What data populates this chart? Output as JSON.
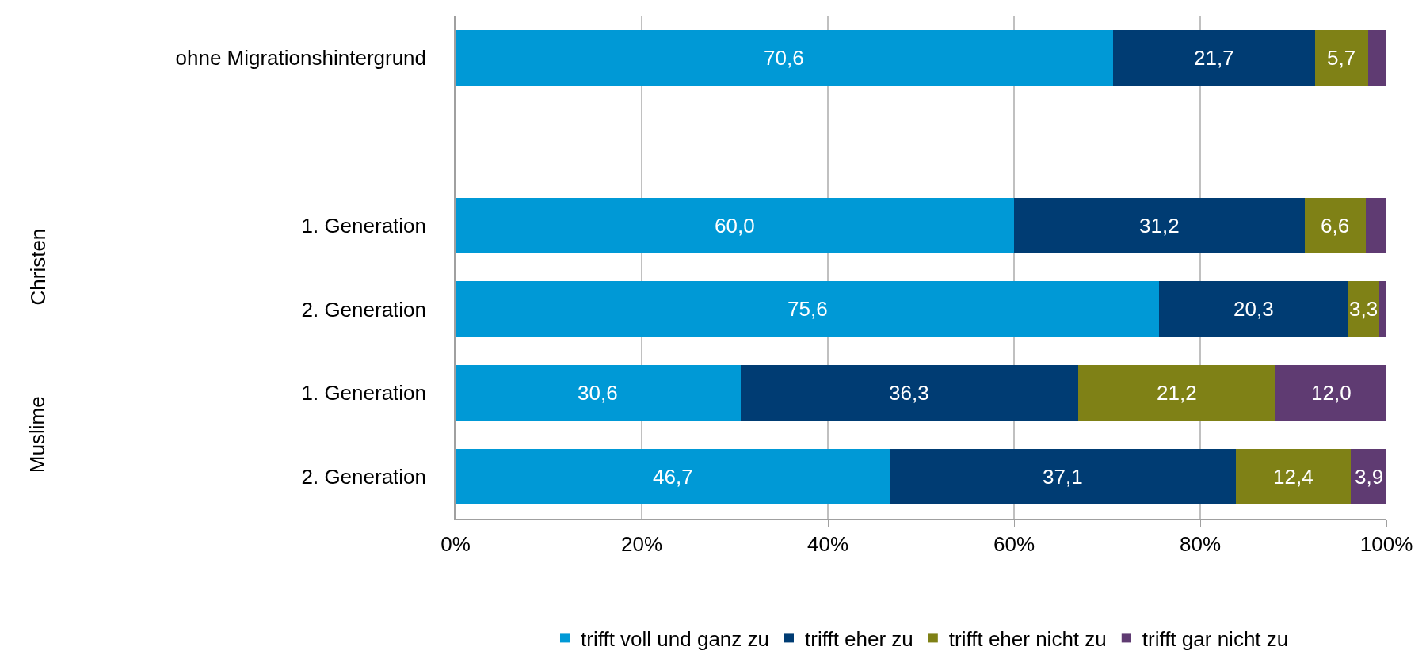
{
  "chart_data": {
    "type": "bar",
    "orientation": "horizontal",
    "stacked": true,
    "categories": [
      "ohne Migrationshintergrund",
      null,
      "1. Generation",
      "2. Generation",
      "1. Generation",
      "2. Generation"
    ],
    "series": [
      {
        "name": "trifft voll und ganz zu",
        "color": "#0099d6",
        "values": [
          70.6,
          null,
          60.0,
          75.6,
          30.6,
          46.7
        ],
        "value_labels": [
          "70,6",
          null,
          "60,0",
          "75,6",
          "30,6",
          "46,7"
        ]
      },
      {
        "name": "trifft eher zu",
        "color": "#003c73",
        "values": [
          21.7,
          null,
          31.2,
          20.3,
          36.3,
          37.1
        ],
        "value_labels": [
          "21,7",
          null,
          "31,2",
          "20,3",
          "36,3",
          "37,1"
        ]
      },
      {
        "name": "trifft eher nicht zu",
        "color": "#7f8116",
        "values": [
          5.7,
          null,
          6.6,
          3.3,
          21.2,
          12.4
        ],
        "value_labels": [
          "5,7",
          null,
          "6,6",
          "3,3",
          "21,2",
          "12,4"
        ]
      },
      {
        "name": "trifft gar nicht zu",
        "color": "#5f3b72",
        "values": [
          2.0,
          null,
          2.2,
          0.8,
          12.0,
          3.9
        ],
        "value_labels": [
          null,
          null,
          null,
          null,
          "12,0",
          "3,9"
        ]
      }
    ],
    "xlim": [
      0,
      100
    ],
    "xticks": [
      {
        "value": 0,
        "label": "0%"
      },
      {
        "value": 20,
        "label": "20%"
      },
      {
        "value": 40,
        "label": "40%"
      },
      {
        "value": 60,
        "label": "60%"
      },
      {
        "value": 80,
        "label": "80%"
      },
      {
        "value": 100,
        "label": "100%"
      }
    ],
    "annotations": [
      "Christen",
      "Muslime"
    ],
    "grid": "x",
    "legend": "bottom"
  }
}
